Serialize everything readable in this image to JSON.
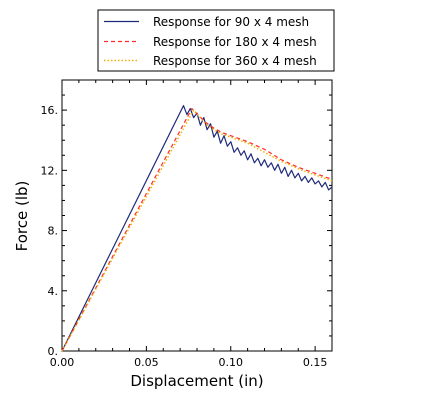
{
  "chart_data": {
    "type": "line",
    "title": "",
    "xlabel": "Displacement (in)",
    "ylabel": "Force (lb)",
    "xlim": [
      0,
      0.16
    ],
    "ylim": [
      0,
      18
    ],
    "x_ticks": [
      0.0,
      0.05,
      0.1,
      0.15
    ],
    "x_tick_labels": [
      "0.00",
      "0.05",
      "0.10",
      "0.15"
    ],
    "y_ticks": [
      0,
      4,
      8,
      12,
      16
    ],
    "y_tick_labels": [
      "0.",
      "4.",
      "8.",
      "12.",
      "16."
    ],
    "grid": false,
    "legend_position": "top-center",
    "series": [
      {
        "name": "Response for 90 x 4 mesh",
        "color": "#1f2a7a",
        "style": "solid",
        "x": [
          0.0,
          0.072,
          0.074,
          0.076,
          0.078,
          0.08,
          0.082,
          0.084,
          0.086,
          0.088,
          0.09,
          0.092,
          0.094,
          0.096,
          0.098,
          0.1,
          0.102,
          0.104,
          0.106,
          0.108,
          0.11,
          0.112,
          0.114,
          0.116,
          0.118,
          0.12,
          0.122,
          0.124,
          0.126,
          0.128,
          0.13,
          0.132,
          0.134,
          0.136,
          0.138,
          0.14,
          0.142,
          0.144,
          0.146,
          0.148,
          0.15,
          0.152,
          0.154,
          0.156,
          0.158,
          0.16
        ],
        "y": [
          0.0,
          16.3,
          15.7,
          16.1,
          15.5,
          15.8,
          15.0,
          15.5,
          14.7,
          15.1,
          14.2,
          14.6,
          13.8,
          14.3,
          13.6,
          13.9,
          13.2,
          13.5,
          13.0,
          13.3,
          12.7,
          13.1,
          12.5,
          12.8,
          12.3,
          12.7,
          12.2,
          12.5,
          12.0,
          12.4,
          11.8,
          12.2,
          11.6,
          12.0,
          11.5,
          11.8,
          11.3,
          11.6,
          11.2,
          11.5,
          11.1,
          11.3,
          10.9,
          11.2,
          10.7,
          10.9
        ]
      },
      {
        "name": "Response for 180 x 4 mesh",
        "color": "#ff2a2a",
        "style": "dashed",
        "x": [
          0.0,
          0.077,
          0.085,
          0.09,
          0.095,
          0.1,
          0.11,
          0.12,
          0.13,
          0.14,
          0.15,
          0.16
        ],
        "y": [
          0.0,
          16.1,
          15.2,
          14.8,
          14.5,
          14.3,
          13.9,
          13.4,
          12.7,
          12.2,
          11.8,
          11.4
        ]
      },
      {
        "name": "Response for 360 x 4 mesh",
        "color": "#f0b000",
        "style": "dotted",
        "x": [
          0.0,
          0.078,
          0.085,
          0.09,
          0.095,
          0.1,
          0.11,
          0.12,
          0.13,
          0.14,
          0.15,
          0.16
        ],
        "y": [
          0.0,
          16.0,
          15.1,
          14.7,
          14.4,
          14.2,
          13.8,
          13.2,
          12.6,
          12.1,
          11.7,
          11.3
        ]
      }
    ]
  }
}
